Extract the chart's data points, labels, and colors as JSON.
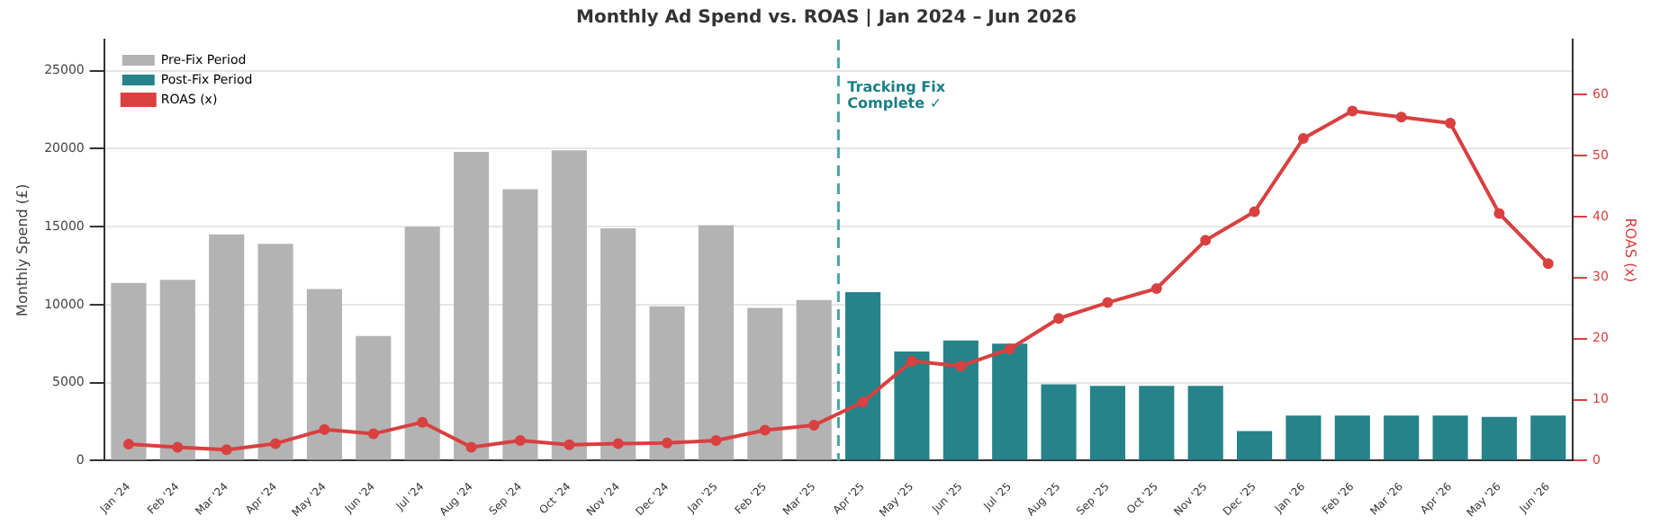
{
  "chart_data": {
    "type": "bar",
    "title": "Monthly Ad Spend vs. ROAS | Jan 2024 – Jun 2026",
    "categories": [
      "Jan '24",
      "Feb '24",
      "Mar '24",
      "Apr '24",
      "May '24",
      "Jun '24",
      "Jul '24",
      "Aug '24",
      "Sep '24",
      "Oct '24",
      "Nov '24",
      "Dec '24",
      "Jan '25",
      "Feb '25",
      "Mar '25",
      "Apr '25",
      "May '25",
      "Jun '25",
      "Jul '25",
      "Aug '25",
      "Sep '25",
      "Oct '25",
      "Nov '25",
      "Dec '25",
      "Jan '26",
      "Feb '26",
      "Mar '26",
      "Apr '26",
      "May '26",
      "Jun '26"
    ],
    "series": [
      {
        "name": "Pre-Fix Period",
        "color": "#b3b3b3",
        "values": [
          11400,
          11600,
          14500,
          13900,
          11000,
          8000,
          15000,
          19800,
          17400,
          19900,
          14900,
          9900,
          15100,
          9800,
          10300,
          null,
          null,
          null,
          null,
          null,
          null,
          null,
          null,
          null,
          null,
          null,
          null,
          null,
          null,
          null
        ]
      },
      {
        "name": "Post-Fix Period",
        "color": "#26838a",
        "values": [
          null,
          null,
          null,
          null,
          null,
          null,
          null,
          null,
          null,
          null,
          null,
          null,
          null,
          null,
          null,
          10800,
          7000,
          7700,
          7500,
          4900,
          4800,
          4800,
          4800,
          1900,
          2900,
          2900,
          2900,
          2900,
          2800,
          2900
        ]
      },
      {
        "name": "ROAS (x)",
        "type": "line",
        "axis": "y2",
        "color": "#d94040",
        "values": [
          2.7,
          2.2,
          1.8,
          2.8,
          5.1,
          4.4,
          6.3,
          2.2,
          3.3,
          2.6,
          2.8,
          2.9,
          3.3,
          5.0,
          5.8,
          9.6,
          16.3,
          15.5,
          18.3,
          23.3,
          25.9,
          28.2,
          36.1,
          40.8,
          52.8,
          57.3,
          56.3,
          55.3,
          40.5,
          32.3
        ]
      }
    ],
    "ylabel": "Monthly Spend (£)",
    "y2label": "ROAS (x)",
    "ylim": [
      0,
      27000
    ],
    "yticks": [
      0,
      5000,
      10000,
      15000,
      20000,
      25000
    ],
    "y2lim": [
      0,
      69
    ],
    "y2ticks": [
      0,
      10,
      20,
      30,
      40,
      50,
      60
    ],
    "ref_lines": [
      {
        "axis": "x",
        "value": "Apr '25",
        "label": "Tracking Fix\nComplete ✓",
        "color": "#4aa3a8",
        "line_style": "dashed"
      }
    ],
    "grid": "y",
    "legend": "top left",
    "marker": "circle",
    "line_style": "solid"
  }
}
